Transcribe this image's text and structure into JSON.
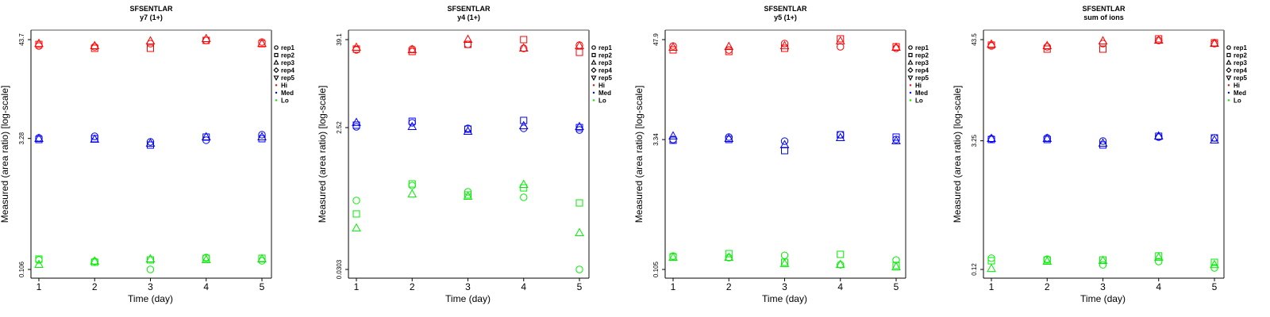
{
  "chart_data": [
    {
      "type": "scatter",
      "title": "SFSENTLAR",
      "subtitle": "y7 (1+)",
      "xlabel": "Time (day)",
      "ylabel": "Measured (area ratio) [log-scale]",
      "yscale": "log",
      "x": [
        1,
        2,
        3,
        4,
        5
      ],
      "xticks": [
        "1",
        "2",
        "3",
        "4",
        "5"
      ],
      "yticks": [
        43.7,
        3.28,
        0.106
      ],
      "ytick_labels": [
        "43.7",
        "3.28",
        "0.106"
      ],
      "series": [
        {
          "name": "Hi",
          "rep": "rep1",
          "values": [
            37.0,
            36.2,
            39.3,
            42.8,
            41.0
          ]
        },
        {
          "name": "Hi",
          "rep": "rep2",
          "values": [
            38.5,
            34.8,
            34.8,
            42.8,
            39.3
          ]
        },
        {
          "name": "Hi",
          "rep": "rep3",
          "values": [
            39.3,
            37.0,
            41.9,
            44.6,
            39.3
          ]
        },
        {
          "name": "Med",
          "rep": "rep1",
          "values": [
            3.33,
            3.47,
            3.0,
            3.13,
            3.62
          ]
        },
        {
          "name": "Med",
          "rep": "rep2",
          "values": [
            3.19,
            3.26,
            2.76,
            3.4,
            3.26
          ]
        },
        {
          "name": "Med",
          "rep": "rep3",
          "values": [
            3.26,
            3.19,
            2.88,
            3.4,
            3.4
          ]
        },
        {
          "name": "Lo",
          "rep": "rep1",
          "values": [
            0.136,
            0.131,
            0.106,
            0.145,
            0.133
          ]
        },
        {
          "name": "Lo",
          "rep": "rep2",
          "values": [
            0.139,
            0.128,
            0.136,
            0.142,
            0.142
          ]
        },
        {
          "name": "Lo",
          "rep": "rep3",
          "values": [
            0.12,
            0.131,
            0.139,
            0.136,
            0.139
          ]
        }
      ]
    },
    {
      "type": "scatter",
      "title": "SFSENTLAR",
      "subtitle": "y4 (1+)",
      "xlabel": "Time (day)",
      "ylabel": "Measured (area ratio) [log-scale]",
      "yscale": "log",
      "x": [
        1,
        2,
        3,
        4,
        5
      ],
      "xticks": [
        "1",
        "2",
        "3",
        "4",
        "5"
      ],
      "yticks": [
        39.1,
        2.52,
        0.0303
      ],
      "ytick_labels": [
        "39.1",
        "2.52",
        "0.0303"
      ],
      "series": [
        {
          "name": "Hi",
          "rep": "rep1",
          "values": [
            28.4,
            29.1,
            33.7,
            29.8,
            32.9
          ]
        },
        {
          "name": "Hi",
          "rep": "rep2",
          "values": [
            29.1,
            27.0,
            33.7,
            39.1,
            26.3
          ]
        },
        {
          "name": "Hi",
          "rep": "rep3",
          "values": [
            30.5,
            28.4,
            39.1,
            29.8,
            32.1
          ]
        },
        {
          "name": "Med",
          "rep": "rep1",
          "values": [
            2.58,
            2.93,
            2.46,
            2.46,
            2.34
          ]
        },
        {
          "name": "Med",
          "rep": "rep2",
          "values": [
            2.72,
            3.07,
            2.4,
            3.15,
            2.52
          ]
        },
        {
          "name": "Med",
          "rep": "rep3",
          "values": [
            2.93,
            2.58,
            2.23,
            2.65,
            2.58
          ]
        },
        {
          "name": "Lo",
          "rep": "rep1",
          "values": [
            0.26,
            0.415,
            0.341,
            0.287,
            0.0303
          ]
        },
        {
          "name": "Lo",
          "rep": "rep2",
          "values": [
            0.171,
            0.436,
            0.309,
            0.385,
            0.241
          ]
        },
        {
          "name": "Lo",
          "rep": "rep3",
          "values": [
            0.109,
            0.316,
            0.294,
            0.426,
            0.0944
          ]
        }
      ]
    },
    {
      "type": "scatter",
      "title": "SFSENTLAR",
      "subtitle": "y5 (1+)",
      "xlabel": "Time (day)",
      "ylabel": "Measured (area ratio) [log-scale]",
      "yscale": "log",
      "x": [
        1,
        2,
        3,
        4,
        5
      ],
      "xticks": [
        "1",
        "2",
        "3",
        "4",
        "5"
      ],
      "yticks": [
        47.9,
        3.34,
        0.105
      ],
      "ytick_labels": [
        "47.9",
        "3.34",
        "0.105"
      ],
      "series": [
        {
          "name": "Hi",
          "rep": "rep1",
          "values": [
            40.4,
            36.4,
            43.1,
            39.6,
            38.0
          ]
        },
        {
          "name": "Hi",
          "rep": "rep2",
          "values": [
            36.4,
            34.9,
            38.0,
            48.9,
            39.6
          ]
        },
        {
          "name": "Hi",
          "rep": "rep3",
          "values": [
            38.8,
            39.6,
            40.4,
            45.9,
            38.8
          ]
        },
        {
          "name": "Med",
          "rep": "rep1",
          "values": [
            3.35,
            3.57,
            3.21,
            3.8,
            3.35
          ]
        },
        {
          "name": "Med",
          "rep": "rep2",
          "values": [
            3.28,
            3.35,
            2.49,
            3.8,
            3.57
          ]
        },
        {
          "name": "Med",
          "rep": "rep3",
          "values": [
            3.65,
            3.42,
            2.89,
            3.49,
            3.21
          ]
        },
        {
          "name": "Lo",
          "rep": "rep1",
          "values": [
            0.15,
            0.144,
            0.153,
            0.119,
            0.135
          ]
        },
        {
          "name": "Lo",
          "rep": "rep2",
          "values": [
            0.147,
            0.16,
            0.127,
            0.157,
            0.117
          ]
        },
        {
          "name": "Lo",
          "rep": "rep3",
          "values": [
            0.144,
            0.144,
            0.122,
            0.119,
            0.112
          ]
        }
      ]
    },
    {
      "type": "scatter",
      "title": "SFSENTLAR",
      "subtitle": "sum of ions",
      "xlabel": "Time (day)",
      "ylabel": "Measured (area ratio) [log-scale]",
      "yscale": "log",
      "x": [
        1,
        2,
        3,
        4,
        5
      ],
      "xticks": [
        "1",
        "2",
        "3",
        "4",
        "5"
      ],
      "yticks": [
        43.5,
        3.25,
        0.12
      ],
      "ytick_labels": [
        "43.5",
        "3.25",
        "0.12"
      ],
      "series": [
        {
          "name": "Hi",
          "rep": "rep1",
          "values": [
            37.0,
            36.2,
            39.3,
            42.6,
            39.3
          ]
        },
        {
          "name": "Hi",
          "rep": "rep2",
          "values": [
            37.8,
            34.1,
            34.1,
            44.4,
            40.1
          ]
        },
        {
          "name": "Hi",
          "rep": "rep3",
          "values": [
            38.5,
            37.0,
            41.8,
            42.6,
            39.3
          ]
        },
        {
          "name": "Med",
          "rep": "rep1",
          "values": [
            3.43,
            3.5,
            3.23,
            3.57,
            3.5
          ]
        },
        {
          "name": "Med",
          "rep": "rep2",
          "values": [
            3.36,
            3.36,
            2.92,
            3.65,
            3.5
          ]
        },
        {
          "name": "Med",
          "rep": "rep3",
          "values": [
            3.43,
            3.43,
            3.04,
            3.65,
            3.29
          ]
        },
        {
          "name": "Lo",
          "rep": "rep1",
          "values": [
            0.16,
            0.156,
            0.135,
            0.147,
            0.125
          ]
        },
        {
          "name": "Lo",
          "rep": "rep2",
          "values": [
            0.15,
            0.153,
            0.153,
            0.17,
            0.144
          ]
        },
        {
          "name": "Lo",
          "rep": "rep3",
          "values": [
            0.122,
            0.147,
            0.15,
            0.163,
            0.135
          ]
        }
      ]
    }
  ],
  "legend": {
    "placement": "right",
    "items": [
      {
        "label": "rep1",
        "symbol": "circle",
        "color": "#000000"
      },
      {
        "label": "rep2",
        "symbol": "square",
        "color": "#000000"
      },
      {
        "label": "rep3",
        "symbol": "triangle",
        "color": "#000000"
      },
      {
        "label": "rep4",
        "symbol": "diamond",
        "color": "#000000"
      },
      {
        "label": "rep5",
        "symbol": "triangle-down",
        "color": "#000000"
      },
      {
        "label": "Hi",
        "symbol": "dot",
        "color": "#ff0000"
      },
      {
        "label": "Med",
        "symbol": "dot",
        "color": "#0000ff"
      },
      {
        "label": "Lo",
        "symbol": "dot",
        "color": "#00ee00"
      }
    ]
  },
  "colors": {
    "Hi": "#ff0000",
    "Med": "#0000ff",
    "Lo": "#00ee00"
  },
  "rep_symbols": {
    "rep1": "circle",
    "rep2": "square",
    "rep3": "triangle"
  }
}
